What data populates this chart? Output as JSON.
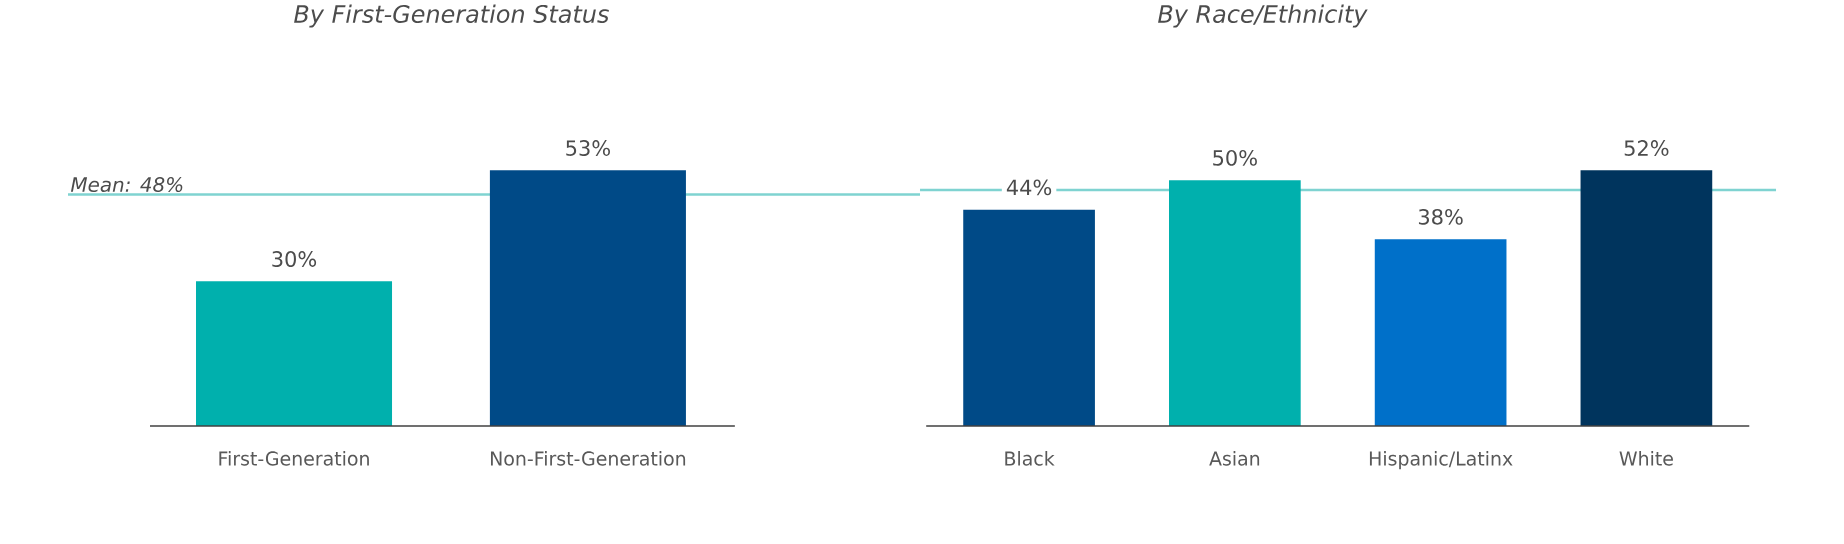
{
  "chart_data": [
    {
      "type": "bar",
      "title": "By First-Generation Status",
      "categories": [
        "First-Generation",
        "Non-First-Generation"
      ],
      "values": [
        30,
        53
      ],
      "value_labels": [
        "30%",
        "53%"
      ],
      "colors": [
        "#00b0ad",
        "#004a87"
      ],
      "tick_labels": "x",
      "ref_lines": [
        {
          "axis": "y",
          "value": 48,
          "label": "Mean: 48%",
          "color": "#7fd3d1"
        }
      ]
    },
    {
      "type": "bar",
      "title": "By Race/Ethnicity",
      "categories": [
        "Black",
        "Asian",
        "Hispanic/Latinx",
        "White"
      ],
      "values": [
        44,
        50,
        38,
        52
      ],
      "value_labels": [
        "44%",
        "50%",
        "38%",
        "52%"
      ],
      "colors": [
        "#004a87",
        "#00b0ad",
        "#0070c9",
        "#00345d"
      ],
      "tick_labels": "x",
      "ref_lines": [
        {
          "axis": "y",
          "value": 48,
          "color": "#7fd3d1"
        }
      ]
    }
  ]
}
